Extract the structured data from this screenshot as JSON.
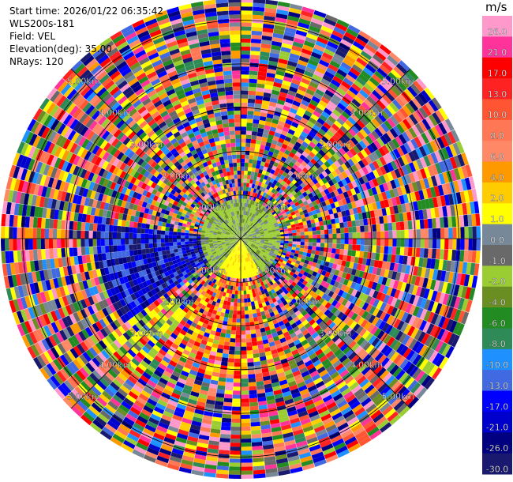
{
  "header": {
    "start_time": "Start time: 2026/01/22 06:35:42",
    "instrument": "WLS200s-181",
    "field": "Field: VEL",
    "elevation": "Elevation(deg): 35.00",
    "nrays": "NRays: 120"
  },
  "chart_data": {
    "type": "heatmap",
    "projection": "polar-ppi",
    "field": "VEL",
    "units": "m/s",
    "elevation_deg": 35.0,
    "nrays": 120,
    "max_range_km": 5.5,
    "range_rings_km": [
      1.0,
      2.0,
      3.0,
      4.0,
      5.0
    ],
    "ring_labels": [
      "1.00km",
      "2.00km",
      "3.00km",
      "4.00km",
      "5.00km"
    ],
    "azimuth_spokes_deg": [
      0,
      45,
      90,
      135,
      180,
      225,
      270,
      315
    ],
    "colorbar": {
      "ticks": [
        "26.0",
        "21.0",
        "17.0",
        "13.0",
        "10.0",
        "8.0",
        "6.0",
        "4.0",
        "2.0",
        "1.0",
        "0.0",
        "-1.0",
        "-2.0",
        "-4.0",
        "-6.0",
        "-8.0",
        "-10.0",
        "-13.0",
        "-17.0",
        "-21.0",
        "-26.0",
        "-30.0"
      ],
      "colors": [
        "#ff99cc",
        "#ff3399",
        "#ff0000",
        "#ff2222",
        "#ff5533",
        "#ff7755",
        "#ff8866",
        "#ff9900",
        "#ffcc00",
        "#ffff00",
        "#778899",
        "#696969",
        "#9acd32",
        "#6b8e23",
        "#228b22",
        "#2e8b57",
        "#1e90ff",
        "#4169e1",
        "#0000ff",
        "#0000cd",
        "#000080",
        "#191970"
      ]
    },
    "regions_description_values": {
      "near_field_green_max_km": 1.0,
      "south_yellow_band_km": [
        0.0,
        1.2
      ],
      "southwest_blue_band_az_deg": [
        235,
        275
      ],
      "south_red_band_az_deg": [
        150,
        200
      ]
    }
  }
}
